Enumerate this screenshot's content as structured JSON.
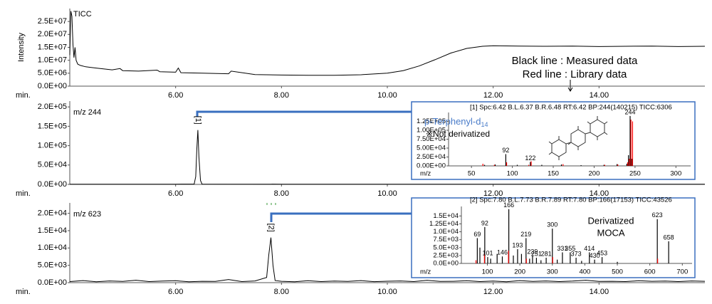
{
  "chart_data": [
    {
      "type": "line",
      "label": "TICC",
      "ylabel": "Intensity",
      "xlabel": "min.",
      "color": "#000000",
      "xlim": [
        4.0,
        16.0
      ],
      "ylim": [
        0,
        30000000
      ],
      "xticks": [
        {
          "value": 6,
          "label": "6.00"
        },
        {
          "value": 8,
          "label": "8.00"
        },
        {
          "value": 10,
          "label": "10.00"
        },
        {
          "value": 12,
          "label": "12.00"
        },
        {
          "value": 14,
          "label": "14.00"
        }
      ],
      "yticks": [
        {
          "value": 0,
          "label": "0.0E+00"
        },
        {
          "value": 5000000,
          "label": "5.0E+06"
        },
        {
          "value": 10000000,
          "label": "1.0E+07"
        },
        {
          "value": 15000000,
          "label": "1.5E+07"
        },
        {
          "value": 20000000,
          "label": "2.0E+07"
        },
        {
          "value": 25000000,
          "label": "2.5E+07"
        }
      ],
      "x": [
        4.0,
        4.02,
        4.04,
        4.06,
        4.08,
        4.1,
        4.12,
        4.15,
        4.2,
        4.3,
        4.5,
        4.8,
        4.95,
        5.0,
        5.3,
        5.65,
        5.7,
        6.0,
        6.05,
        6.1,
        6.5,
        7.0,
        7.05,
        7.5,
        8.0,
        8.5,
        9.0,
        9.5,
        10.0,
        10.3,
        10.6,
        10.9,
        11.2,
        11.5,
        11.8,
        12.0,
        12.5,
        13.0,
        13.5,
        14.0,
        14.5,
        15.0,
        15.5,
        16.0
      ],
      "values": [
        12000000,
        29000000,
        27000000,
        16000000,
        11000000,
        15000000,
        10000000,
        8500000,
        8000000,
        7500000,
        7000000,
        6300000,
        6800000,
        6000000,
        5800000,
        6200000,
        5600000,
        5400000,
        7000000,
        5200000,
        5000000,
        4800000,
        5800000,
        4500000,
        4300000,
        4200000,
        4200000,
        4400000,
        5000000,
        6000000,
        7800000,
        10200000,
        12800000,
        14600000,
        15400000,
        15600000,
        15500000,
        15400000,
        15500000,
        15300000,
        15400000,
        15500000,
        15300000,
        15400000
      ],
      "annotations": [
        {
          "text": "Black line : Measured data",
          "color": "#000000"
        },
        {
          "text": "Red line : Library data",
          "color": "#ff0000"
        }
      ]
    },
    {
      "type": "line",
      "label": "m/z 244",
      "xlabel": "min.",
      "color": "#000000",
      "xlim": [
        4.0,
        16.0
      ],
      "ylim": [
        0,
        215000
      ],
      "xticks": [
        {
          "value": 6,
          "label": "6.00"
        },
        {
          "value": 8,
          "label": "8.00"
        },
        {
          "value": 10,
          "label": "10.00"
        },
        {
          "value": 12,
          "label": "12.00"
        },
        {
          "value": 14,
          "label": "14.00"
        }
      ],
      "yticks": [
        {
          "value": 0,
          "label": "0.0E+00"
        },
        {
          "value": 50000,
          "label": "5.0E+04"
        },
        {
          "value": 100000,
          "label": "1.0E+05"
        },
        {
          "value": 150000,
          "label": "1.5E+05"
        },
        {
          "value": 200000,
          "label": "2.0E+05"
        }
      ],
      "x": [
        4.0,
        6.0,
        6.35,
        6.38,
        6.4,
        6.42,
        6.44,
        6.47,
        6.5,
        8.0,
        10.0,
        12.0,
        14.0,
        16.0
      ],
      "values": [
        500,
        500,
        800,
        20000,
        90000,
        140215,
        70000,
        10000,
        800,
        600,
        600,
        600,
        600,
        600
      ],
      "peak_marker": {
        "x": 6.42,
        "label": "[1]"
      }
    },
    {
      "type": "line",
      "label": "m/z 623",
      "xlabel": "min.",
      "color": "#000000",
      "xlim": [
        4.0,
        16.0
      ],
      "ylim": [
        0,
        23000
      ],
      "xticks": [
        {
          "value": 6,
          "label": "6.00"
        },
        {
          "value": 8,
          "label": "8.00"
        },
        {
          "value": 10,
          "label": "10.00"
        },
        {
          "value": 12,
          "label": "12.00"
        },
        {
          "value": 14,
          "label": "14.00"
        }
      ],
      "yticks": [
        {
          "value": 0,
          "label": "0.0E+00"
        },
        {
          "value": 5000,
          "label": "5.0E+03"
        },
        {
          "value": 10000,
          "label": "1.0E+04"
        },
        {
          "value": 15000,
          "label": "1.5E+04"
        },
        {
          "value": 20000,
          "label": "2.0E+04"
        }
      ],
      "x": [
        4.0,
        4.25,
        4.5,
        4.75,
        5.0,
        5.25,
        5.5,
        5.75,
        6.0,
        6.25,
        6.5,
        6.75,
        7.0,
        7.25,
        7.5,
        7.72,
        7.76,
        7.8,
        7.84,
        7.88,
        8.0,
        8.25,
        8.5,
        8.75,
        9.0,
        9.25,
        9.5,
        9.75,
        10.0,
        10.25,
        10.5,
        10.75,
        11.0,
        11.25,
        11.5,
        11.75,
        12.0,
        12.25,
        12.5,
        12.75,
        13.0,
        13.25,
        13.5,
        13.75,
        14.0,
        14.25,
        14.5,
        14.75,
        15.0,
        15.25,
        15.5,
        15.75,
        16.0
      ],
      "values": [
        300,
        600,
        250,
        500,
        350,
        700,
        300,
        450,
        550,
        250,
        400,
        350,
        900,
        300,
        500,
        1500,
        8000,
        13000,
        5000,
        600,
        400,
        250,
        550,
        300,
        450,
        350,
        600,
        280,
        420,
        500,
        300,
        650,
        350,
        400,
        550,
        300,
        450,
        250,
        600,
        350,
        500,
        300,
        450,
        700,
        350,
        400,
        300,
        550,
        380,
        450,
        300,
        500,
        400
      ],
      "peak_marker": {
        "x": 7.8,
        "label": "[2]"
      }
    },
    {
      "type": "bar",
      "header": "[1] Spc:6.42 B.L.6.37 B.R.6.48 RT:6.42 BP:244(140215) TICC:6306",
      "xlabel": "m/z",
      "compound_label": {
        "text": "p-Terphenyl-d",
        "subscript": "14"
      },
      "note": "※Not derivatized",
      "xlim": [
        22,
        318
      ],
      "ylim": [
        0,
        150000
      ],
      "xticks": [
        50,
        100,
        150,
        200,
        250,
        300
      ],
      "yticks": [
        {
          "value": 0,
          "label": "0.00E+00"
        },
        {
          "value": 25000,
          "label": "2.50E+04"
        },
        {
          "value": 50000,
          "label": "5.00E+04"
        },
        {
          "value": 75000,
          "label": "7.50E+04"
        },
        {
          "value": 100000,
          "label": "1.00E+05"
        },
        {
          "value": 125000,
          "label": "1.25E+05"
        }
      ],
      "series": [
        {
          "color": "#000000",
          "x": [
            66,
            79,
            92,
            106,
            122,
            136,
            160,
            184,
            212,
            228,
            240,
            242,
            244,
            246
          ],
          "values": [
            3000,
            4000,
            33000,
            3000,
            11000,
            3000,
            4000,
            2000,
            3000,
            5000,
            6000,
            30000,
            140215,
            20000
          ]
        },
        {
          "color": "#ff0000",
          "x": [
            64,
            78,
            93,
            120,
            123,
            162,
            213,
            229,
            241,
            243,
            245,
            247
          ],
          "values": [
            6000,
            3000,
            10000,
            3000,
            13000,
            5000,
            3000,
            4000,
            10000,
            20000,
            130000,
            125000
          ]
        }
      ],
      "labeled_peaks": [
        244,
        92,
        122
      ]
    },
    {
      "type": "bar",
      "header": "[2] Spc:7.80 B.L.7.73 B.R.7.89 RT:7.80 BP:166(17153) TICC:43526",
      "xlabel": "m/z",
      "compound_label": {
        "text": "Derivatized",
        "subscript": "MOCA"
      },
      "xlim": [
        20,
        730
      ],
      "ylim": [
        0,
        18000
      ],
      "xticks": [
        100,
        200,
        300,
        400,
        500,
        600,
        700
      ],
      "yticks": [
        {
          "value": 0,
          "label": "0.0E+00"
        },
        {
          "value": 2500,
          "label": "2.5E+03"
        },
        {
          "value": 5000,
          "label": "5.0E+03"
        },
        {
          "value": 7500,
          "label": "7.5E+03"
        },
        {
          "value": 10000,
          "label": "1.0E+04"
        },
        {
          "value": 12500,
          "label": "1.25E+04"
        },
        {
          "value": 15000,
          "label": "1.5E+04"
        }
      ],
      "series": [
        {
          "color": "#000000",
          "x": [
            69,
            77,
            92,
            101,
            110,
            130,
            146,
            166,
            180,
            193,
            205,
            219,
            230,
            239,
            251,
            265,
            281,
            300,
            315,
            331,
            355,
            373,
            390,
            414,
            430,
            453,
            500,
            623,
            658
          ],
          "values": [
            8000,
            5000,
            11500,
            2000,
            1500,
            3000,
            2200,
            17153,
            2500,
            4500,
            3000,
            8000,
            1500,
            2500,
            1800,
            1000,
            1800,
            11000,
            1200,
            3500,
            3500,
            1800,
            800,
            3500,
            1200,
            2000,
            500,
            14000,
            7000
          ]
        },
        {
          "color": "#ff0000",
          "x": [
            65,
            91,
            165,
            220,
            301,
            624
          ],
          "values": [
            1000,
            3000,
            4000,
            1500,
            2000,
            1500
          ]
        }
      ],
      "labeled_peaks": [
        69,
        92,
        101,
        146,
        166,
        193,
        219,
        239,
        251,
        281,
        300,
        331,
        355,
        373,
        414,
        430,
        453,
        623,
        658
      ]
    }
  ]
}
